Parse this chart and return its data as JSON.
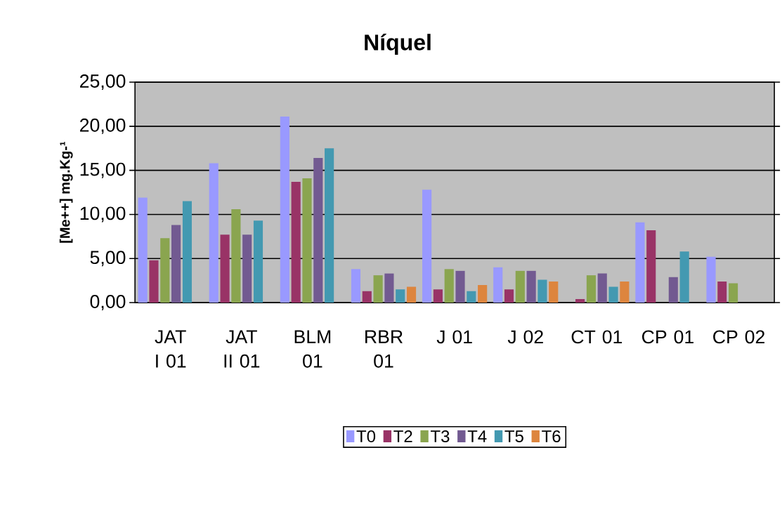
{
  "chart_data": {
    "type": "bar",
    "title": "Níquel",
    "ylabel": "[Me++] mg.Kg-¹",
    "categories": [
      "JAT I 01",
      "JAT II 01",
      "BLM 01",
      "RBR 01",
      "J 01",
      "J 02",
      "CT 01",
      "CP 01",
      "CP 02"
    ],
    "series": [
      {
        "name": "T0",
        "color": "#9999ff",
        "values": [
          11.9,
          15.8,
          21.1,
          3.8,
          12.8,
          4.0,
          null,
          9.1,
          5.2
        ]
      },
      {
        "name": "T2",
        "color": "#993366",
        "values": [
          4.8,
          7.7,
          13.7,
          1.3,
          1.5,
          1.5,
          0.4,
          8.2,
          2.4
        ]
      },
      {
        "name": "T3",
        "color": "#8aa54f",
        "values": [
          7.3,
          10.6,
          14.1,
          3.1,
          3.8,
          3.6,
          3.1,
          null,
          2.2
        ]
      },
      {
        "name": "T4",
        "color": "#725a91",
        "values": [
          8.8,
          7.7,
          16.4,
          3.3,
          3.6,
          3.6,
          3.3,
          2.9,
          null
        ]
      },
      {
        "name": "T5",
        "color": "#4399b1",
        "values": [
          11.5,
          9.3,
          17.5,
          1.5,
          1.3,
          2.6,
          1.8,
          5.8,
          null
        ]
      },
      {
        "name": "T6",
        "color": "#dd853e",
        "values": [
          null,
          null,
          null,
          1.8,
          2.0,
          2.4,
          2.4,
          null,
          null
        ]
      }
    ],
    "ylim": [
      0,
      25
    ],
    "yticks": [
      {
        "value": 0,
        "label": "0,00"
      },
      {
        "value": 5,
        "label": "5,00"
      },
      {
        "value": 10,
        "label": "10,00"
      },
      {
        "value": 15,
        "label": "15,00"
      },
      {
        "value": 20,
        "label": "20,00"
      },
      {
        "value": 25,
        "label": "25,00"
      }
    ],
    "grid": "y",
    "legend": "bottom"
  }
}
